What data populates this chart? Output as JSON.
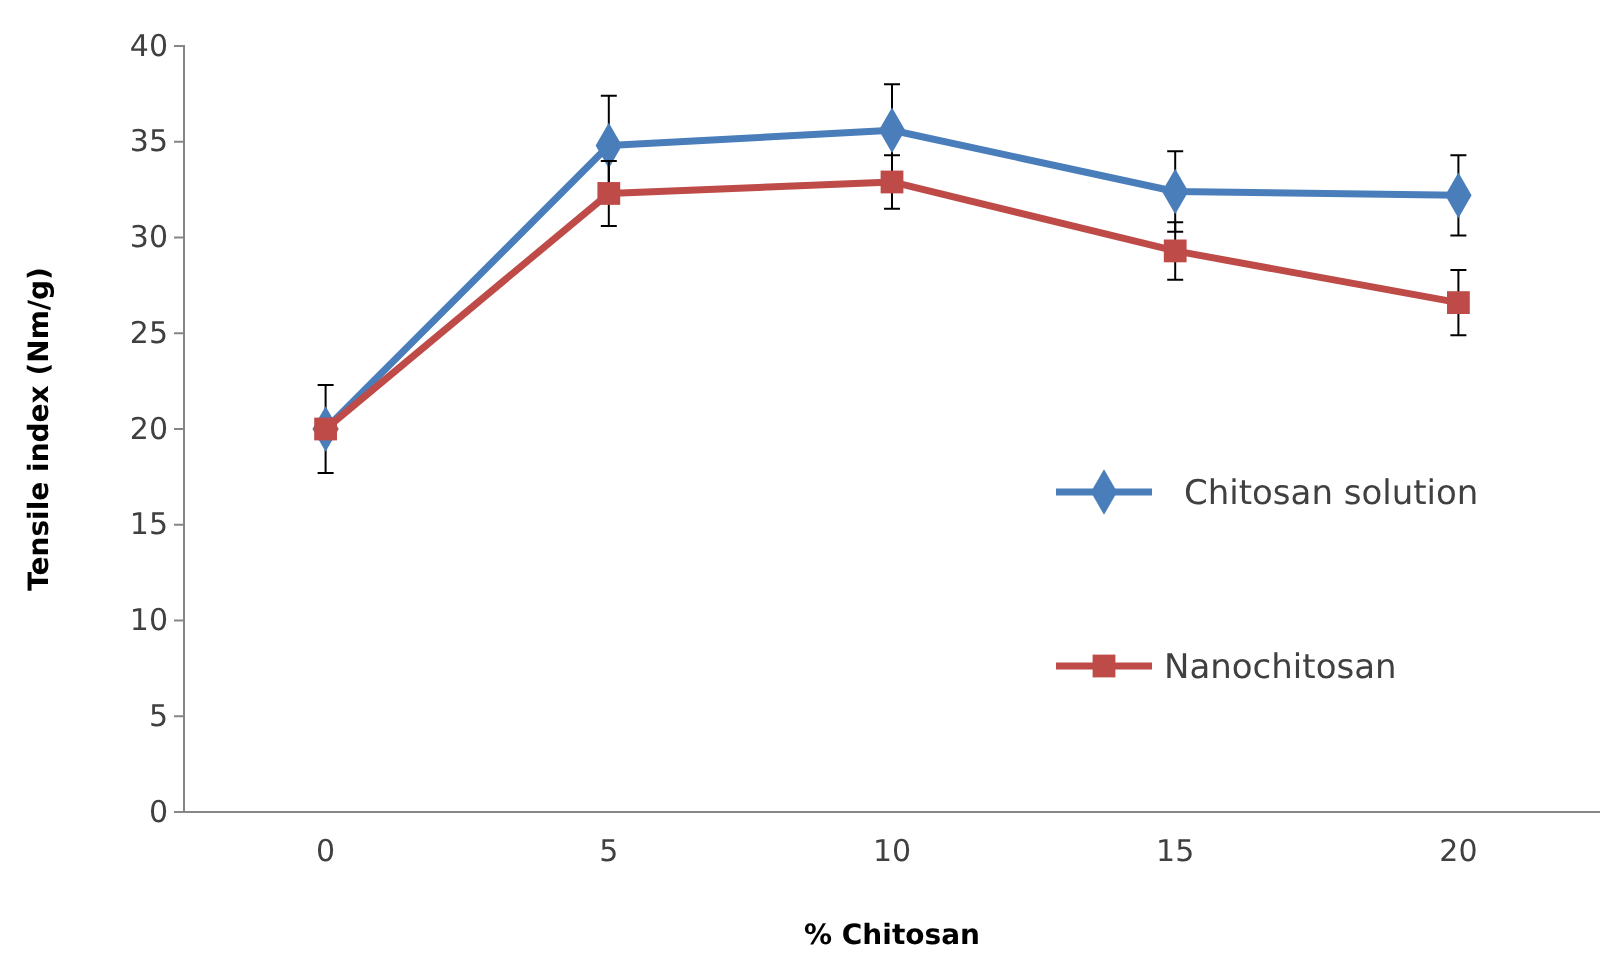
{
  "chart_data": {
    "type": "line",
    "xlabel": "% Chitosan",
    "ylabel": "Tensile index (Nm/g)",
    "categories": [
      "0",
      "5",
      "10",
      "15",
      "20"
    ],
    "series": [
      {
        "name": "Chitosan solution",
        "color": "#4a7ebb",
        "marker": "diamond",
        "values": [
          20,
          34.8,
          35.6,
          32.4,
          32.2
        ],
        "errors": [
          2.3,
          2.6,
          2.4,
          2.1,
          2.1
        ]
      },
      {
        "name": "Nanochitosan",
        "color": "#be4b48",
        "marker": "square",
        "values": [
          20,
          32.3,
          32.9,
          29.3,
          26.6
        ],
        "errors": [
          null,
          1.7,
          1.4,
          1.5,
          1.7
        ]
      }
    ],
    "ylim": [
      0,
      40
    ],
    "yticks": [
      0,
      5,
      10,
      15,
      20,
      25,
      30,
      35,
      40
    ],
    "grid": false,
    "legend": "right",
    "line_style": "solid"
  }
}
